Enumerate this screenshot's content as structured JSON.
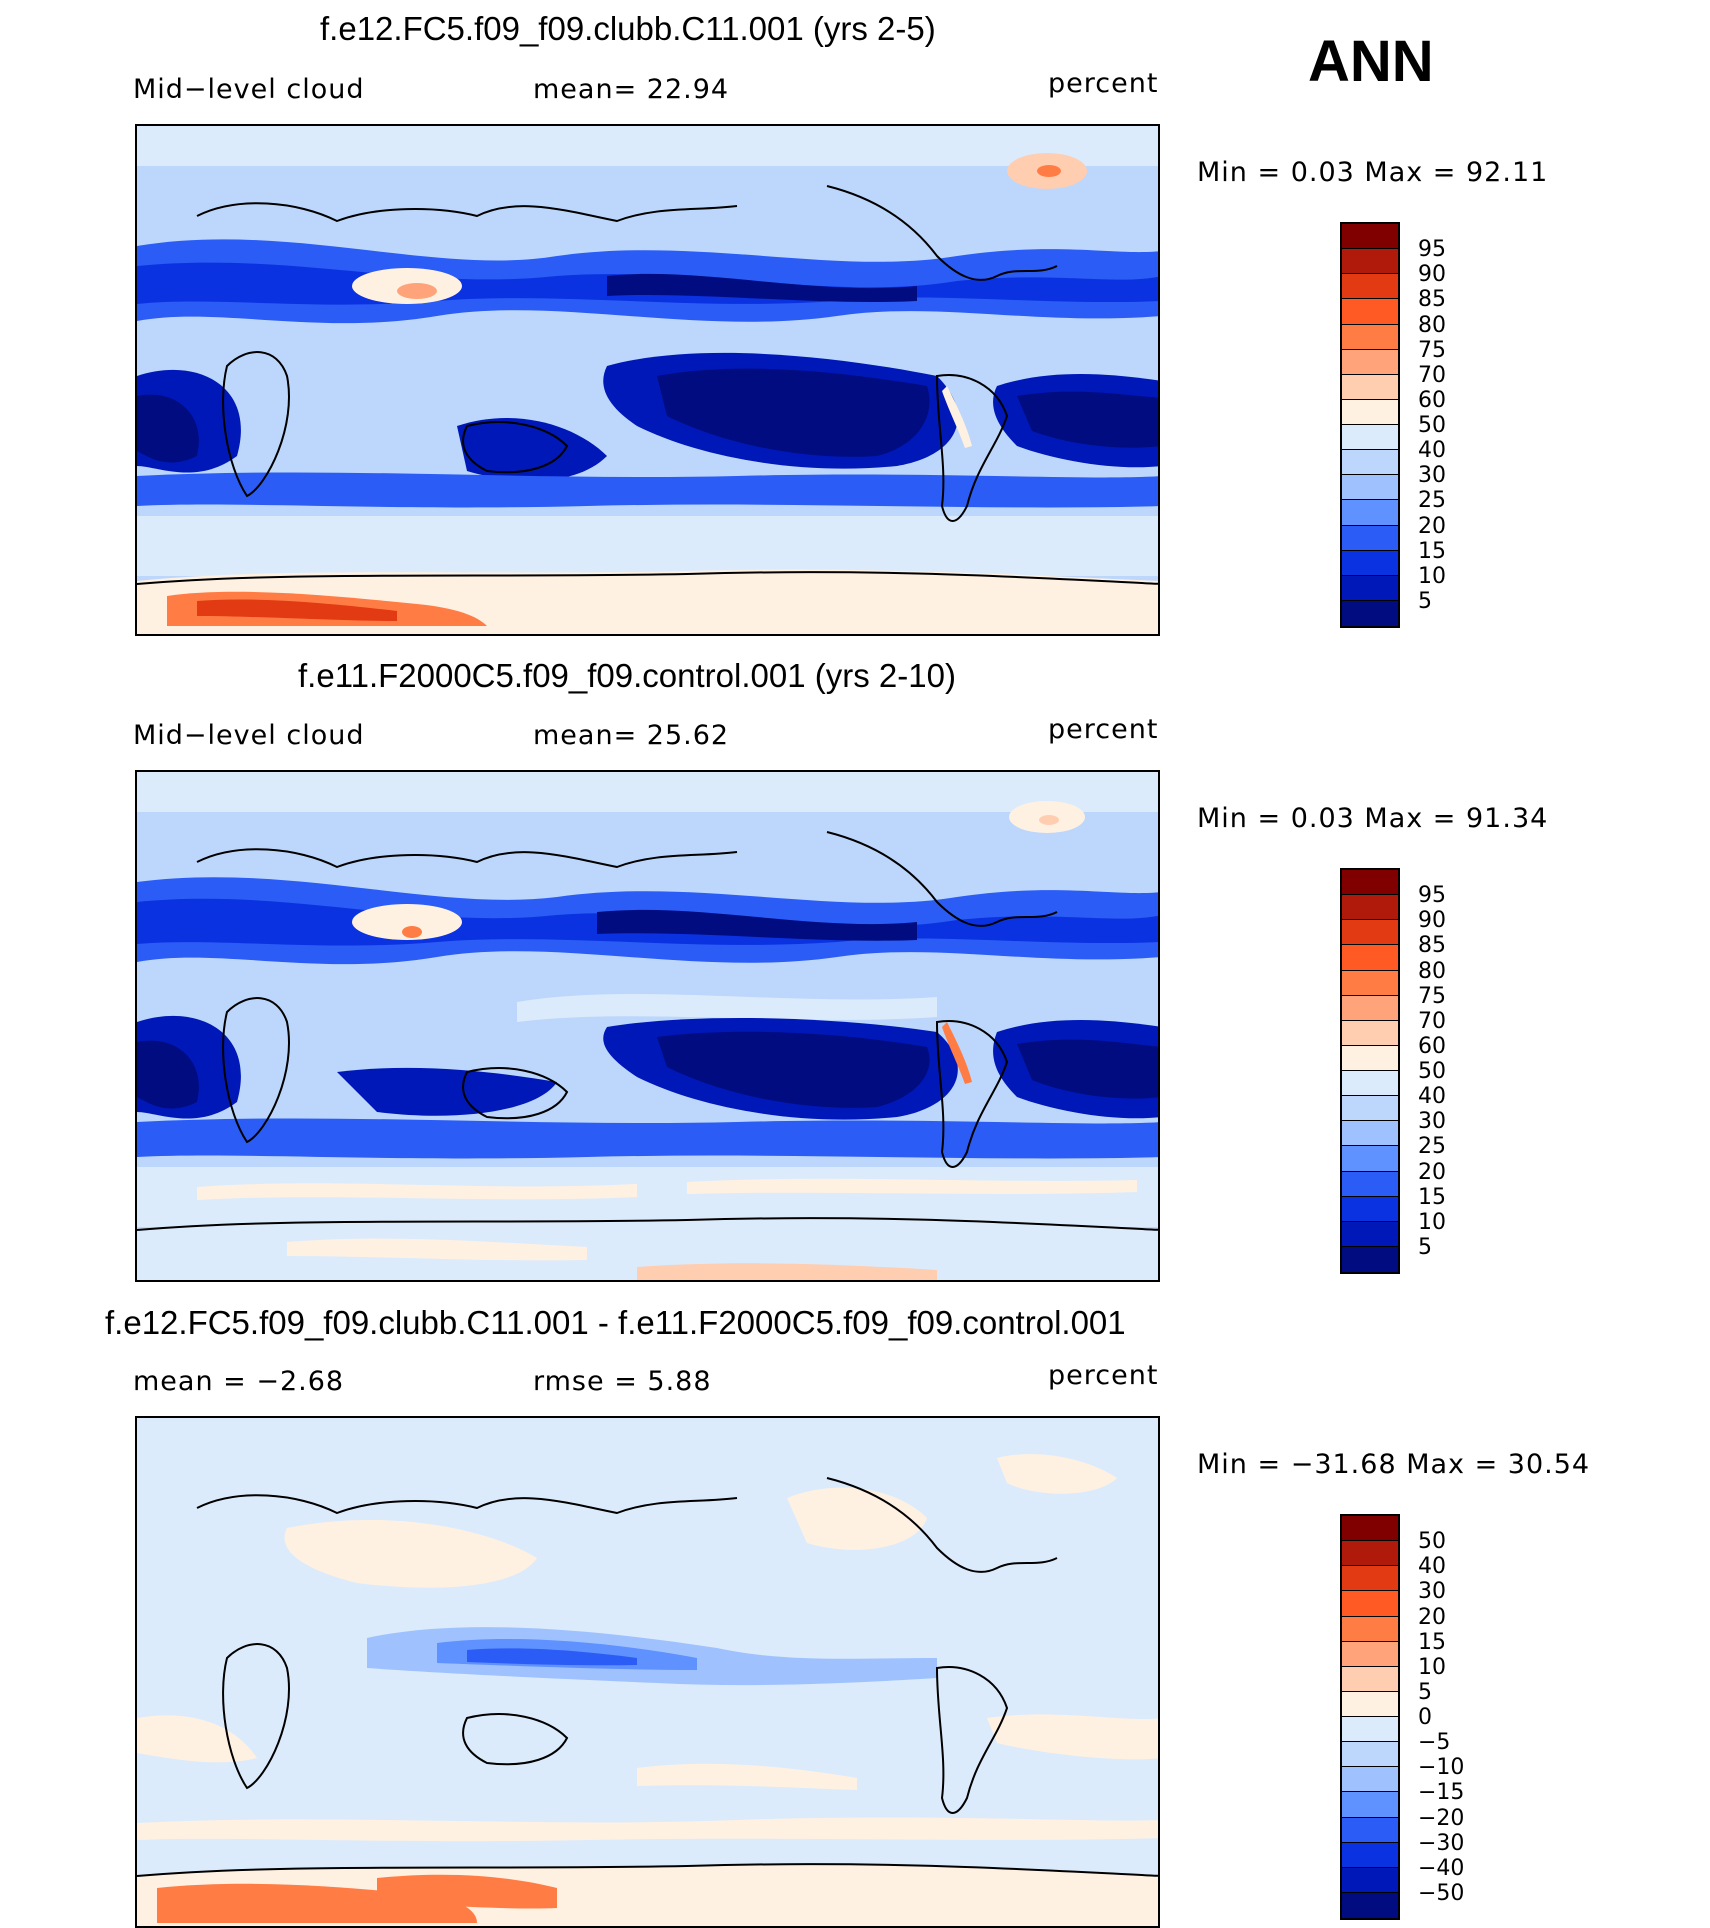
{
  "season": "ANN",
  "panels": [
    {
      "title": "f.e12.FC5.f09_f09.clubb.C11.001 (yrs 2-5)",
      "left_label": "Mid−level  cloud",
      "center_label": "mean=   22.94",
      "units": "percent",
      "minmax": "Min  =     0.03  Max  =    92.11",
      "palette": "abs",
      "levels": [
        "95",
        "90",
        "85",
        "80",
        "75",
        "70",
        "60",
        "50",
        "40",
        "30",
        "25",
        "20",
        "15",
        "10",
        "5"
      ]
    },
    {
      "title": "f.e11.F2000C5.f09_f09.control.001 (yrs 2-10)",
      "left_label": "Mid−level  cloud",
      "center_label": "mean=   25.62",
      "units": "percent",
      "minmax": "Min  =     0.03  Max  =    91.34",
      "palette": "abs",
      "levels": [
        "95",
        "90",
        "85",
        "80",
        "75",
        "70",
        "60",
        "50",
        "40",
        "30",
        "25",
        "20",
        "15",
        "10",
        "5"
      ]
    },
    {
      "title": "f.e12.FC5.f09_f09.clubb.C11.001 - f.e11.F2000C5.f09_f09.control.001",
      "left_label": "mean  =    −2.68",
      "center_label": "rmse  =     5.88",
      "units": "percent",
      "minmax": "Min  = −31.68  Max  =    30.54",
      "palette": "diff",
      "levels": [
        "50",
        "40",
        "30",
        "20",
        "15",
        "10",
        "5",
        "0",
        "−5",
        "−10",
        "−15",
        "−20",
        "−30",
        "−40",
        "−50"
      ]
    }
  ],
  "colors": {
    "abs_palette": [
      "#800000",
      "#b01a0b",
      "#e23a12",
      "#ff5a24",
      "#ff7d45",
      "#ffa47a",
      "#ffcdb0",
      "#fff1e2",
      "#dcebfb",
      "#bcd7fb",
      "#9fc2ff",
      "#5f91ff",
      "#2b5cf5",
      "#0a32e0",
      "#0018b8",
      "#000c80"
    ],
    "diff_palette": [
      "#800000",
      "#b01a0b",
      "#e23a12",
      "#ff5a24",
      "#ff7d45",
      "#ffa47a",
      "#ffcdb0",
      "#fff1e2",
      "#dcebfb",
      "#bcd7fb",
      "#9fc2ff",
      "#5f91ff",
      "#2b5cf5",
      "#0a32e0",
      "#0018b8",
      "#000c80"
    ]
  }
}
